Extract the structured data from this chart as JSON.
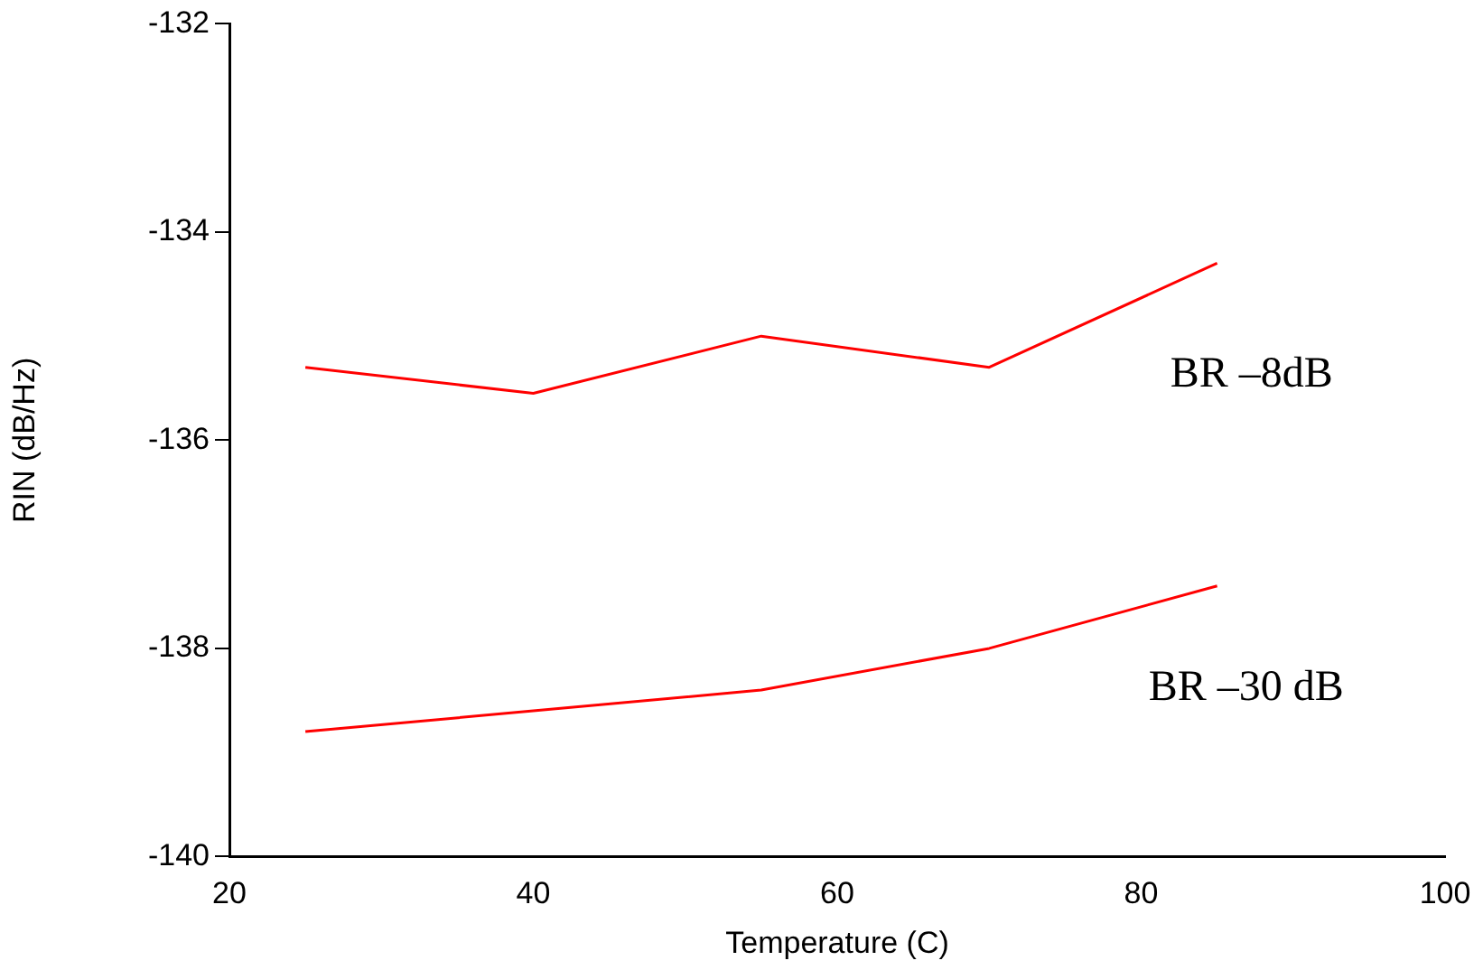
{
  "chart_data": {
    "type": "line",
    "xlabel": "Temperature (C)",
    "ylabel": "RIN (dB/Hz)",
    "xlim": [
      20,
      100
    ],
    "xticks": [
      20,
      40,
      60,
      80,
      100
    ],
    "ylim": [
      -140,
      -132
    ],
    "yticks": [
      -140,
      -138,
      -136,
      -134,
      -132
    ],
    "grid": false,
    "legend": false,
    "marker": "none",
    "line_style": "solid",
    "x": [
      25,
      40,
      55,
      70,
      85
    ],
    "series": [
      {
        "name": "BR –8dB",
        "color": "#ff0000",
        "values": [
          -135.3,
          -135.55,
          -135.0,
          -135.3,
          -134.3
        ]
      },
      {
        "name": "BR –30 dB",
        "color": "#ff0000",
        "values": [
          -138.8,
          -138.6,
          -138.4,
          -138.0,
          -137.4
        ]
      }
    ]
  }
}
